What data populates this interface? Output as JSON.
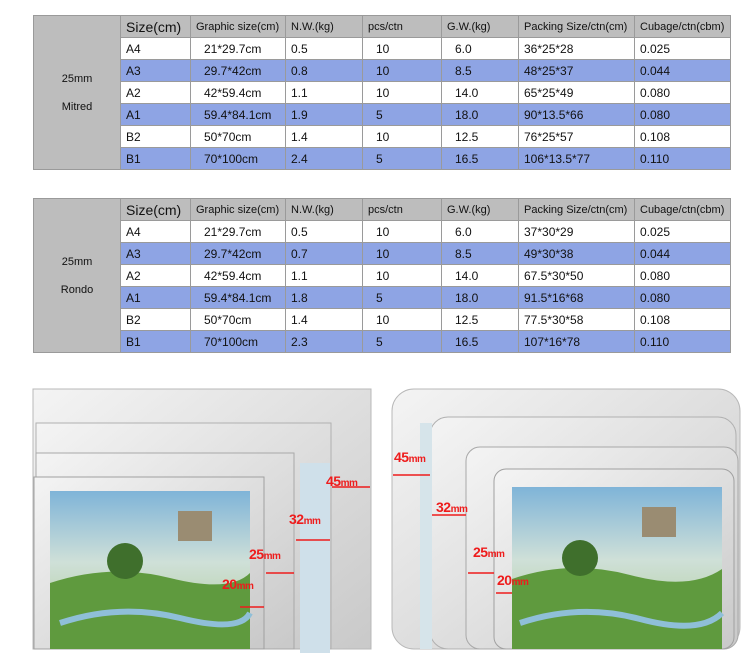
{
  "headers": [
    "Size(cm)",
    "Graphic size(cm)",
    "N.W.(kg)",
    "pcs/ctn",
    "G.W.(kg)",
    "Packing Size/ctn(cm)",
    "Cubage/ctn(cbm)"
  ],
  "tables": [
    {
      "group_line1": "25mm",
      "group_line2": "Mitred",
      "rows": [
        [
          "A4",
          "21*29.7cm",
          "0.5",
          "10",
          "6.0",
          "36*25*28",
          "0.025"
        ],
        [
          "A3",
          "29.7*42cm",
          "0.8",
          "10",
          "8.5",
          "48*25*37",
          "0.044"
        ],
        [
          "A2",
          "42*59.4cm",
          "1.1",
          "10",
          "14.0",
          "65*25*49",
          "0.080"
        ],
        [
          "A1",
          "59.4*84.1cm",
          "1.9",
          "5",
          "18.0",
          "90*13.5*66",
          "0.080"
        ],
        [
          "B2",
          "50*70cm",
          "1.4",
          "10",
          "12.5",
          "76*25*57",
          "0.108"
        ],
        [
          "B1",
          "70*100cm",
          "2.4",
          "5",
          "16.5",
          "106*13.5*77",
          "0.110"
        ]
      ]
    },
    {
      "group_line1": "25mm",
      "group_line2": "Rondo",
      "rows": [
        [
          "A4",
          "21*29.7cm",
          "0.5",
          "10",
          "6.0",
          "37*30*29",
          "0.025"
        ],
        [
          "A3",
          "29.7*42cm",
          "0.7",
          "10",
          "8.5",
          "49*30*38",
          "0.044"
        ],
        [
          "A2",
          "42*59.4cm",
          "1.1",
          "10",
          "14.0",
          "67.5*30*50",
          "0.080"
        ],
        [
          "A1",
          "59.4*84.1cm",
          "1.8",
          "5",
          "18.0",
          "91.5*16*68",
          "0.080"
        ],
        [
          "B2",
          "50*70cm",
          "1.4",
          "10",
          "12.5",
          "77.5*30*58",
          "0.108"
        ],
        [
          "B1",
          "70*100cm",
          "2.3",
          "5",
          "16.5",
          "107*16*78",
          "0.110"
        ]
      ]
    }
  ],
  "profiles": {
    "mitred": [
      {
        "num": "45",
        "unit": "mm"
      },
      {
        "num": "32",
        "unit": "mm"
      },
      {
        "num": "25",
        "unit": "mm"
      },
      {
        "num": "20",
        "unit": "mm"
      }
    ],
    "rondo": [
      {
        "num": "45",
        "unit": "mm"
      },
      {
        "num": "32",
        "unit": "mm"
      },
      {
        "num": "25",
        "unit": "mm"
      },
      {
        "num": "20",
        "unit": "mm"
      }
    ]
  },
  "colors": {
    "header_bg": "#bdbdbd",
    "stripe": "#8ea4e4",
    "dimension_text": "#ee1c1c"
  }
}
